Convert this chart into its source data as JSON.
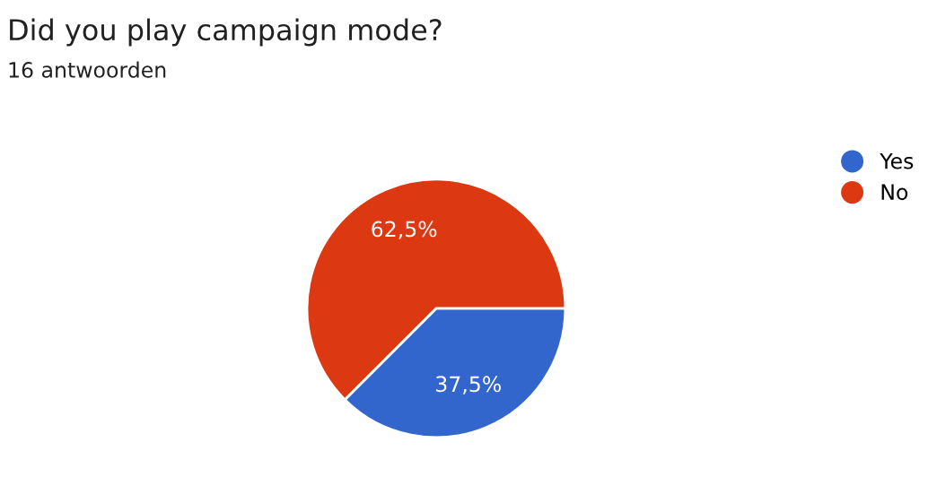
{
  "chart_data": {
    "type": "pie",
    "title": "Did you play campaign mode?",
    "subtitle": "16 antwoorden",
    "categories": [
      "Yes",
      "No"
    ],
    "values": [
      37.5,
      62.5
    ],
    "colors": [
      "#3366cc",
      "#dc3912"
    ],
    "value_labels": [
      "37,5%",
      "62,5%"
    ],
    "legend": "right"
  }
}
